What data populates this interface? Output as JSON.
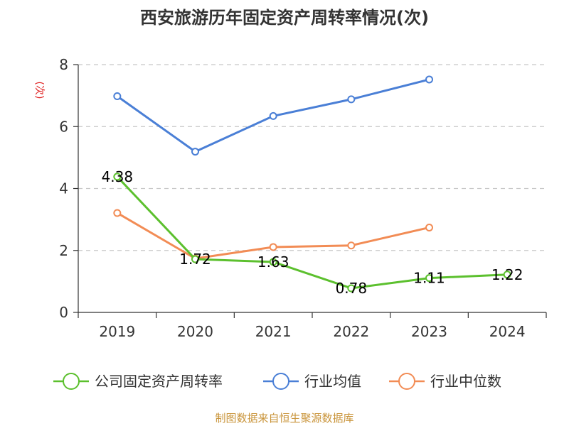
{
  "chart_data": {
    "type": "line",
    "title": "西安旅游历年固定资产周转率情况(次)",
    "ylabel": "(次)",
    "xlabel": "",
    "ylim": [
      0,
      8
    ],
    "yticks": [
      0,
      2,
      4,
      6,
      8
    ],
    "categories": [
      "2019",
      "2020",
      "2021",
      "2022",
      "2023",
      "2024"
    ],
    "grid": true,
    "legend_position": "bottom",
    "series": [
      {
        "name": "公司固定资产周转率",
        "color": "#5cc02e",
        "values": [
          4.38,
          1.72,
          1.63,
          0.78,
          1.11,
          1.22
        ],
        "labels": [
          "4.38",
          "1.72",
          "1.63",
          "0.78",
          "1.11",
          "1.22"
        ]
      },
      {
        "name": "行业均值",
        "color": "#4a7fd6",
        "values": [
          6.98,
          5.19,
          6.34,
          6.88,
          7.52,
          null
        ]
      },
      {
        "name": "行业中位数",
        "color": "#f28c55",
        "values": [
          3.21,
          1.74,
          2.11,
          2.16,
          2.74,
          null
        ]
      }
    ],
    "source": "制图数据来自恒生聚源数据库"
  }
}
